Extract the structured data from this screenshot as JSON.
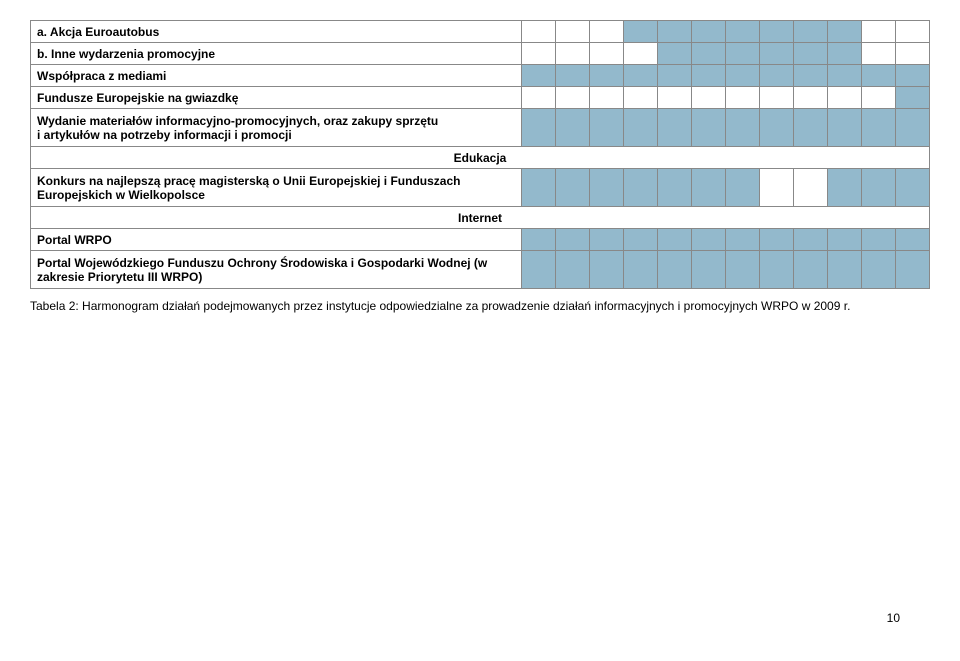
{
  "colors": {
    "cell_fill": "#93b9cc",
    "border": "#888888",
    "background": "#ffffff",
    "text": "#000000"
  },
  "months": 12,
  "rows": [
    {
      "label": "a.  Akcja Euroautobus",
      "class": "indent-a",
      "fill": [
        0,
        0,
        0,
        1,
        1,
        1,
        1,
        1,
        1,
        1,
        0,
        0
      ]
    },
    {
      "label": "b.  Inne wydarzenia promocyjne",
      "class": "indent-b",
      "fill": [
        0,
        0,
        0,
        0,
        1,
        1,
        1,
        1,
        1,
        1,
        0,
        0
      ]
    },
    {
      "label": "Współpraca z mediami",
      "class": "bold",
      "fill": [
        1,
        1,
        1,
        1,
        1,
        1,
        1,
        1,
        1,
        1,
        1,
        1
      ]
    },
    {
      "label": "Fundusze Europejskie na gwiazdkę",
      "class": "bold",
      "fill": [
        0,
        0,
        0,
        0,
        0,
        0,
        0,
        0,
        0,
        0,
        0,
        1
      ]
    },
    {
      "label": "Wydanie materiałów informacyjno-promocyjnych, oraz zakupy sprzętu\ni artykułów na potrzeby informacji i promocji",
      "class": "bold",
      "fill": [
        1,
        1,
        1,
        1,
        1,
        1,
        1,
        1,
        1,
        1,
        1,
        1
      ],
      "tall": true
    },
    {
      "label": "Edukacja",
      "section": true
    },
    {
      "label": "Konkurs na najlepszą pracę magisterską o Unii Europejskiej i Funduszach Europejskich w Wielkopolsce",
      "class": "bold",
      "fill": [
        1,
        1,
        1,
        1,
        1,
        1,
        1,
        0,
        0,
        1,
        1,
        1
      ],
      "tall": true
    },
    {
      "label": "Internet",
      "section": true
    },
    {
      "label": "Portal WRPO",
      "class": "bold",
      "fill": [
        1,
        1,
        1,
        1,
        1,
        1,
        1,
        1,
        1,
        1,
        1,
        1
      ]
    },
    {
      "label": "Portal Wojewódzkiego Funduszu Ochrony Środowiska i Gospodarki Wodnej (w zakresie Priorytetu III WRPO)",
      "class": "bold",
      "fill": [
        1,
        1,
        1,
        1,
        1,
        1,
        1,
        1,
        1,
        1,
        1,
        1
      ],
      "tall": true
    }
  ],
  "caption": "Tabela 2: Harmonogram działań podejmowanych przez instytucje odpowiedzialne za prowadzenie działań informacyjnych i promocyjnych WRPO w 2009 r.",
  "page_number": "10"
}
